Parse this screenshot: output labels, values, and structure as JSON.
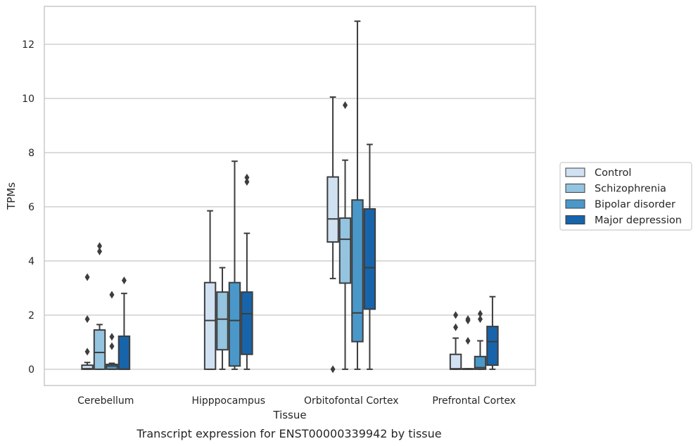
{
  "caption": "Transcript expression for ENST00000339942 by tissue",
  "chart_data": {
    "type": "box",
    "xlabel": "Tissue",
    "ylabel": "TPMs",
    "ylim": [
      -0.6,
      13.4
    ],
    "yticks": [
      0,
      2,
      4,
      6,
      8,
      10,
      12
    ],
    "grid": true,
    "legend_position": "right",
    "categories": [
      "Cerebellum",
      "Hipppocampus",
      "Orbitofontal Cortex",
      "Prefrontal Cortex"
    ],
    "series": [
      {
        "name": "Control",
        "color": "#d0e1f2",
        "boxes": [
          {
            "whisker_low": 0,
            "q1": 0,
            "median": 0.02,
            "q3": 0.15,
            "whisker_high": 0.25,
            "outliers": [
              0.65,
              1.85,
              3.4
            ]
          },
          {
            "whisker_low": 0,
            "q1": 0,
            "median": 1.8,
            "q3": 3.2,
            "whisker_high": 5.85,
            "outliers": []
          },
          {
            "whisker_low": 3.35,
            "q1": 4.7,
            "median": 5.55,
            "q3": 7.1,
            "whisker_high": 10.05,
            "outliers": [
              0
            ]
          },
          {
            "whisker_low": 0,
            "q1": 0,
            "median": 0.02,
            "q3": 0.55,
            "whisker_high": 1.15,
            "outliers": [
              1.55,
              2.0
            ]
          }
        ]
      },
      {
        "name": "Schizophrenia",
        "color": "#94c4df",
        "boxes": [
          {
            "whisker_low": 0,
            "q1": 0,
            "median": 0.62,
            "q3": 1.45,
            "whisker_high": 1.65,
            "outliers": [
              4.35,
              4.55
            ]
          },
          {
            "whisker_low": 0,
            "q1": 0.72,
            "median": 1.85,
            "q3": 2.85,
            "whisker_high": 3.75,
            "outliers": []
          },
          {
            "whisker_low": 0,
            "q1": 3.18,
            "median": 4.8,
            "q3": 5.58,
            "whisker_high": 7.72,
            "outliers": [
              9.75
            ]
          },
          {
            "whisker_low": 0,
            "q1": 0,
            "median": 0,
            "q3": 0.02,
            "whisker_high": 0.02,
            "outliers": [
              1.05,
              1.8,
              1.85
            ]
          }
        ]
      },
      {
        "name": "Bipolar disorder",
        "color": "#4a98c9",
        "boxes": [
          {
            "whisker_low": 0,
            "q1": 0,
            "median": 0.12,
            "q3": 0.18,
            "whisker_high": 0.22,
            "outliers": [
              0.85,
              1.2,
              2.75
            ]
          },
          {
            "whisker_low": 0,
            "q1": 0.12,
            "median": 1.8,
            "q3": 3.2,
            "whisker_high": 7.68,
            "outliers": []
          },
          {
            "whisker_low": 0,
            "q1": 1.02,
            "median": 2.08,
            "q3": 6.25,
            "whisker_high": 12.85,
            "outliers": []
          },
          {
            "whisker_low": 0,
            "q1": 0,
            "median": 0.06,
            "q3": 0.47,
            "whisker_high": 1.05,
            "outliers": [
              1.85,
              2.05
            ]
          }
        ]
      },
      {
        "name": "Major depression",
        "color": "#1764ab",
        "boxes": [
          {
            "whisker_low": 0,
            "q1": 0,
            "median": 0,
            "q3": 1.22,
            "whisker_high": 2.8,
            "outliers": [
              3.28
            ]
          },
          {
            "whisker_low": 0,
            "q1": 0.55,
            "median": 2.05,
            "q3": 2.85,
            "whisker_high": 5.02,
            "outliers": [
              6.92,
              7.08
            ]
          },
          {
            "whisker_low": 0,
            "q1": 2.22,
            "median": 3.75,
            "q3": 5.92,
            "whisker_high": 8.3,
            "outliers": []
          },
          {
            "whisker_low": 0,
            "q1": 0.15,
            "median": 1.02,
            "q3": 1.58,
            "whisker_high": 2.68,
            "outliers": []
          }
        ]
      }
    ]
  }
}
